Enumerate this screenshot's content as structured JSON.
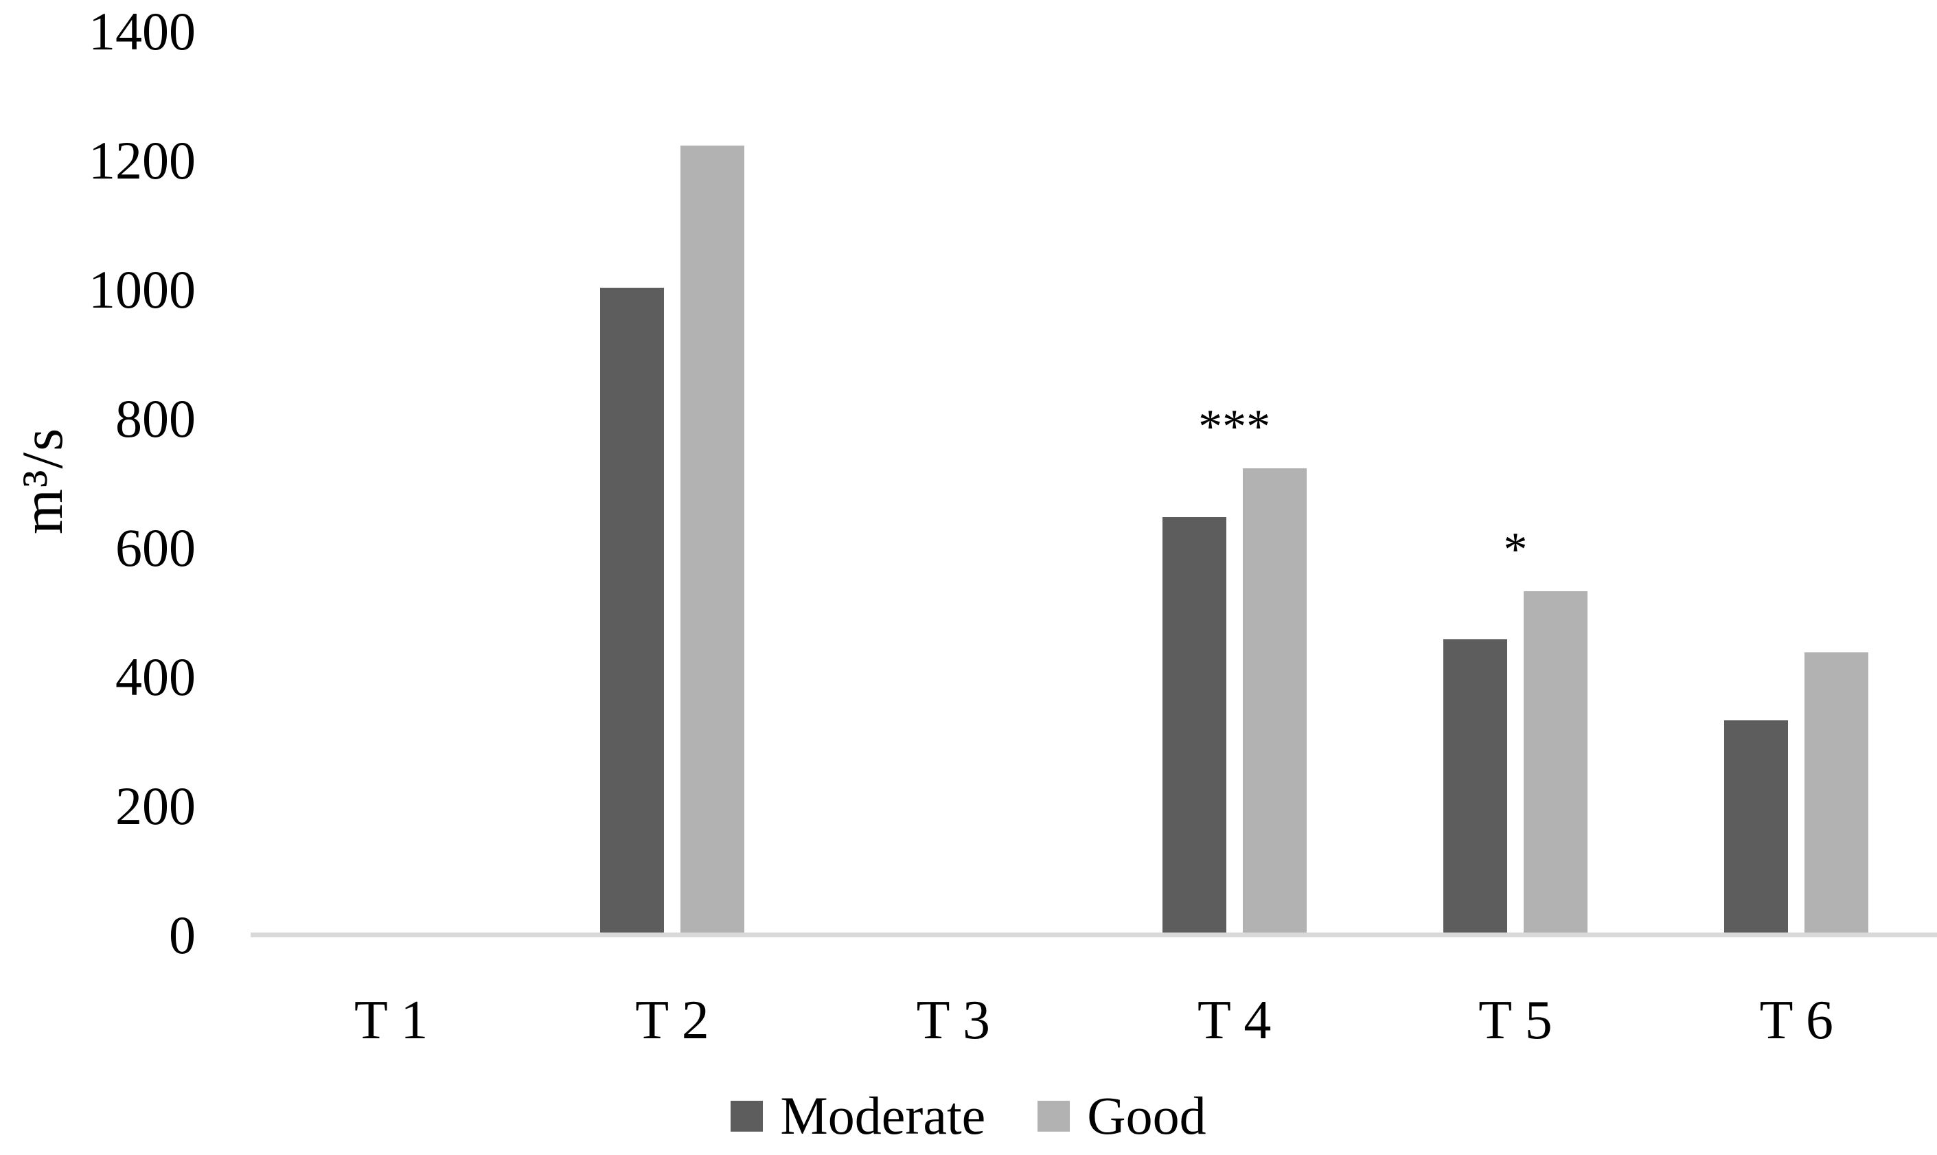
{
  "chart_data": {
    "type": "bar",
    "title": "",
    "xlabel": "",
    "ylabel": "m³/s",
    "categories": [
      "T 1",
      "T 2",
      "T 3",
      "T 4",
      "T 5",
      "T 6"
    ],
    "series": [
      {
        "name": "Moderate",
        "color": "#5d5d5d",
        "values": [
          0,
          1000,
          0,
          645,
          455,
          330
        ]
      },
      {
        "name": "Good",
        "color": "#b2b2b2",
        "values": [
          0,
          1220,
          0,
          720,
          530,
          435
        ]
      }
    ],
    "annotations": [
      {
        "category": "T 4",
        "text": "***"
      },
      {
        "category": "T 5",
        "text": "*"
      }
    ],
    "y_ticks": [
      0,
      200,
      400,
      600,
      800,
      1000,
      1200,
      1400
    ],
    "ylim": [
      0,
      1400
    ],
    "grid": false,
    "legend_position": "bottom",
    "axis_line_color": "#d9d9d9",
    "background_color": "#ffffff",
    "text_color": "#000000"
  }
}
